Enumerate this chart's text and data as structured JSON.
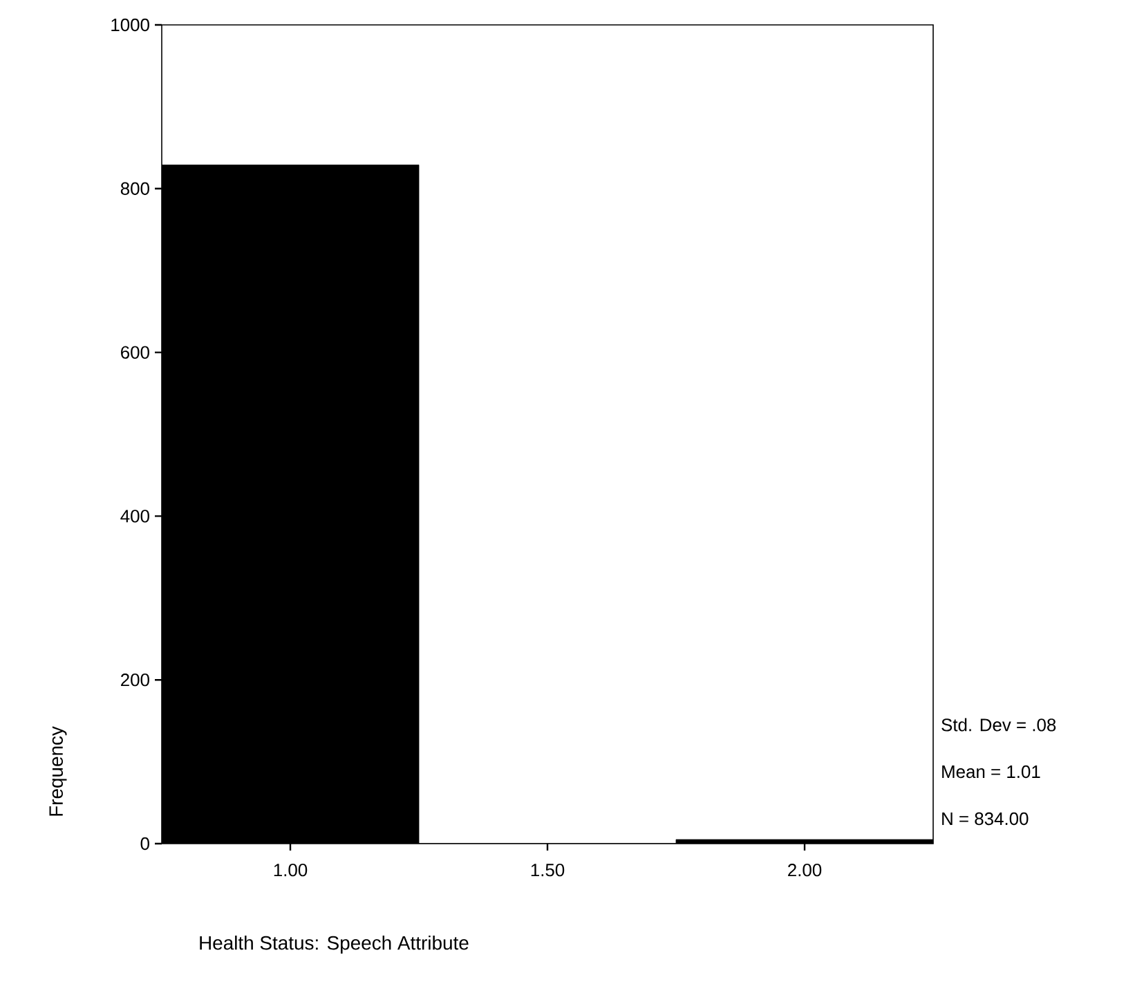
{
  "chart_data": {
    "type": "histogram",
    "xlabel": "Health Status: Speech Attribute",
    "ylabel": "Frequency",
    "bins": [
      0.75,
      1.25,
      1.75,
      2.25
    ],
    "values": [
      829,
      0,
      5
    ],
    "color": "#000000",
    "xlim": [
      0.75,
      2.25
    ],
    "ylim": [
      0,
      1000
    ],
    "xticks": [
      {
        "value": 1,
        "label": "1.00"
      },
      {
        "value": 1.5,
        "label": "1.50"
      },
      {
        "value": 2,
        "label": "2.00"
      }
    ],
    "yticks": [
      0,
      200,
      400,
      600,
      800,
      1000
    ],
    "annotations": [
      "Std. Dev = .08",
      "Mean = 1.01",
      "N = 834.00"
    ],
    "line_style": "solid"
  }
}
